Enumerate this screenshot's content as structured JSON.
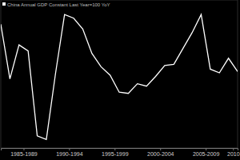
{
  "chart_data": {
    "type": "line",
    "title": "China Annual GDP Constant Last Year=100 YoY",
    "x": [
      1985,
      1986,
      1987,
      1988,
      1989,
      1990,
      1991,
      1992,
      1993,
      1994,
      1995,
      1996,
      1997,
      1998,
      1999,
      2000,
      2001,
      2002,
      2003,
      2004,
      2005,
      2006,
      2007,
      2008,
      2009,
      2010,
      2011
    ],
    "values": [
      13.4,
      8.9,
      11.7,
      11.2,
      4.2,
      3.9,
      9.3,
      14.2,
      13.9,
      13.0,
      11.0,
      9.9,
      9.2,
      7.8,
      7.7,
      8.5,
      8.3,
      9.1,
      10.0,
      10.1,
      11.4,
      12.7,
      14.2,
      9.7,
      9.4,
      10.6,
      9.5
    ],
    "color": "#ffffff",
    "xlim": [
      1985,
      2011
    ],
    "xticks": [
      {
        "value": 1987.5,
        "label": "1985-1989"
      },
      {
        "value": 1992.5,
        "label": "1990-1994"
      },
      {
        "value": 1997.5,
        "label": "1995-1999"
      },
      {
        "value": 2002.5,
        "label": "2000-2004"
      },
      {
        "value": 2007.5,
        "label": "2005-2009"
      },
      {
        "value": 2010.5,
        "label": "2010"
      }
    ],
    "ylim": [
      3.2,
      15.4
    ],
    "tick_labels": "x",
    "grid": false
  }
}
